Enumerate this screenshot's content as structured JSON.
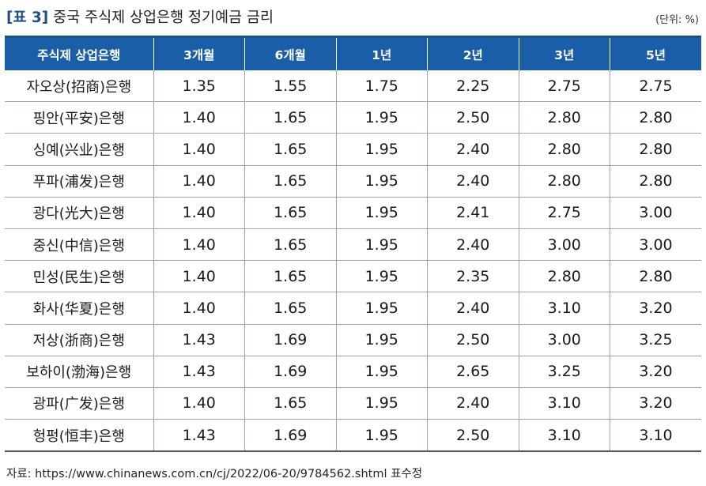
{
  "title": {
    "label": "[표 3]",
    "text": "중국 주식제 상업은행 정기예금 금리",
    "unit": "(단위: %)"
  },
  "table": {
    "headers": [
      "주식제 상업은행",
      "3개월",
      "6개월",
      "1년",
      "2년",
      "3년",
      "5년"
    ],
    "rows": [
      [
        "자오상(招商)은행",
        "1.35",
        "1.55",
        "1.75",
        "2.25",
        "2.75",
        "2.75"
      ],
      [
        "핑안(平安)은행",
        "1.40",
        "1.65",
        "1.95",
        "2.50",
        "2.80",
        "2.80"
      ],
      [
        "싱예(兴业)은행",
        "1.40",
        "1.65",
        "1.95",
        "2.40",
        "2.80",
        "2.80"
      ],
      [
        "푸파(浦发)은행",
        "1.40",
        "1.65",
        "1.95",
        "2.40",
        "2.80",
        "2.80"
      ],
      [
        "광다(光大)은행",
        "1.40",
        "1.65",
        "1.95",
        "2.41",
        "2.75",
        "3.00"
      ],
      [
        "중신(中信)은행",
        "1.40",
        "1.65",
        "1.95",
        "2.40",
        "3.00",
        "3.00"
      ],
      [
        "민성(民生)은행",
        "1.40",
        "1.65",
        "1.95",
        "2.35",
        "2.80",
        "2.80"
      ],
      [
        "화사(华夏)은행",
        "1.40",
        "1.65",
        "1.95",
        "2.40",
        "3.10",
        "3.20"
      ],
      [
        "저상(浙商)은행",
        "1.43",
        "1.69",
        "1.95",
        "2.50",
        "3.00",
        "3.25"
      ],
      [
        "보하이(渤海)은행",
        "1.43",
        "1.69",
        "1.95",
        "2.65",
        "3.25",
        "3.20"
      ],
      [
        "광파(广发)은행",
        "1.40",
        "1.65",
        "1.95",
        "2.40",
        "3.10",
        "3.20"
      ],
      [
        "헝펑(恒丰)은행",
        "1.43",
        "1.69",
        "1.95",
        "2.50",
        "3.10",
        "3.10"
      ]
    ]
  },
  "source": "자료: https://www.chinanews.com.cn/cj/2022/06-20/9784562.shtml 표수정"
}
